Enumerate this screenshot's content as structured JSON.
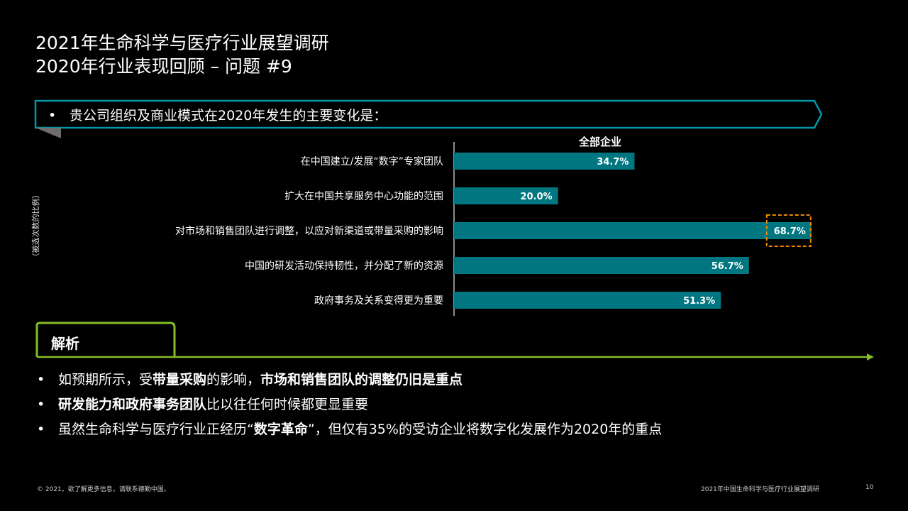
{
  "title": {
    "line1": "2021年生命科学与医疗行业展望调研",
    "line2": "2020年行业表现回顾 – 问题 #9"
  },
  "question": {
    "bullet": "•",
    "text": "贵公司组织及商业模式在2020年发生的主要变化是："
  },
  "side_label": "（被选次数的比例）",
  "chart_data": {
    "type": "bar",
    "orientation": "horizontal",
    "series": [
      {
        "name": "全部企业",
        "values": [
          34.7,
          20.0,
          68.7,
          56.7,
          51.3
        ]
      }
    ],
    "categories": [
      "在中国建立/发展“数字”专家团队",
      "扩大在中国共享服务中心功能的范围",
      "对市场和销售团队进行调整，以应对新渠道或带量采购的影响",
      "中国的研发活动保持韧性，并分配了新的资源",
      "政府事务及关系变得更为重要"
    ],
    "value_labels": [
      "34.7%",
      "20.0%",
      "68.7%",
      "56.7%",
      "51.3%"
    ],
    "highlighted_index": 2,
    "bar_color": "#007680",
    "highlight_color": "#ed8b00",
    "xlim": [
      0,
      75
    ]
  },
  "analysis": {
    "label": "解析",
    "points": [
      {
        "bullet": "•",
        "parts": [
          {
            "text": "如预期所示，受",
            "bold": false
          },
          {
            "text": "带量采购",
            "bold": true
          },
          {
            "text": "的影响，",
            "bold": false
          },
          {
            "text": "市场和销售团队的调整仍旧是重点",
            "bold": true
          }
        ]
      },
      {
        "bullet": "•",
        "parts": [
          {
            "text": "研发能力和政府事务团队",
            "bold": true
          },
          {
            "text": "比以往任何时候都更显重要",
            "bold": false
          }
        ]
      },
      {
        "bullet": "•",
        "parts": [
          {
            "text": "虽然生命科学与医疗行业正经历“",
            "bold": false
          },
          {
            "text": "数字革命",
            "bold": true
          },
          {
            "text": "”，但仅有35%的受访企业将数字化发展作为2020年的重点",
            "bold": false
          }
        ]
      }
    ]
  },
  "colors": {
    "accent_teal": "#0097a9",
    "accent_green": "#86bc25"
  },
  "footer": {
    "left": "© 2021。欲了解更多信息，请联系德勤中国。",
    "right": "2021年中国生命科学与医疗行业展望调研",
    "page": "10"
  }
}
